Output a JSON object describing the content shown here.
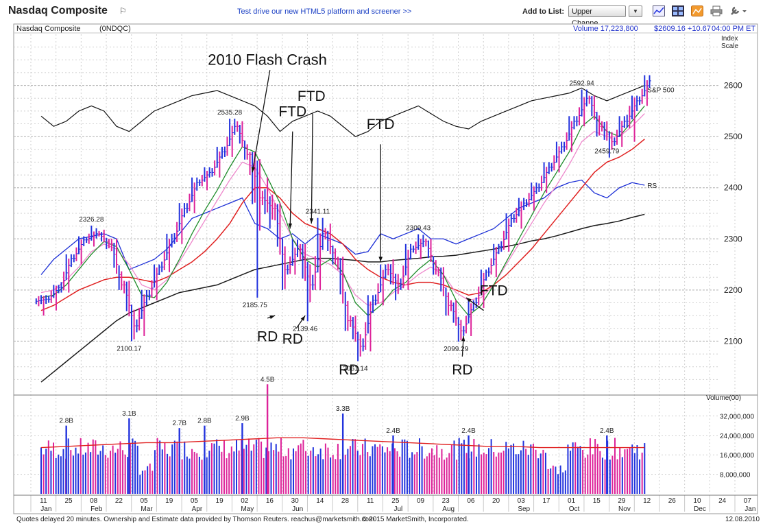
{
  "header": {
    "title": "Nasdaq Composite",
    "promo": "Test drive our new HTML5 platform and screener >>",
    "add_to_list": "Add to List:",
    "list_value": "Upper Channe..."
  },
  "info_bar": {
    "name": "Nasdaq Composite",
    "symbol": "(0NDQC)",
    "volume": "Volume 17,223,800",
    "price": "$2609.16 +10.67",
    "time": "04:00 PM ET"
  },
  "footer": {
    "left": "Quotes delayed 20 minutes.  Ownership and Estimate data provided by Thomson Reuters. reachus@marketsmith.com",
    "center": "© 2015 MarketSmith, Incorporated.",
    "date": "12.08.2010"
  },
  "colors": {
    "up": "#2233dd",
    "down": "#dd2299",
    "ma_short": "#1e8c2a",
    "ma_mid": "#ee88cc",
    "ma_50": "#e02020",
    "ma_200": "#1a1a1a",
    "rs_line": "#1c2fd6",
    "grid": "#cfcfcf"
  },
  "chart_data": [
    {
      "type": "line",
      "title": "Nasdaq Composite",
      "ylabel": "Index Scale",
      "y_ticks": [
        2100,
        2200,
        2300,
        2400,
        2500,
        2600
      ],
      "ylim": [
        2000,
        2700
      ],
      "grid": true,
      "x_labels": [
        {
          "label": "11",
          "month": "Jan"
        },
        {
          "label": "25",
          "month": ""
        },
        {
          "label": "08",
          "month": "Feb"
        },
        {
          "label": "22",
          "month": ""
        },
        {
          "label": "05",
          "month": "Mar"
        },
        {
          "label": "19",
          "month": ""
        },
        {
          "label": "05",
          "month": "Apr"
        },
        {
          "label": "19",
          "month": ""
        },
        {
          "label": "02",
          "month": "May"
        },
        {
          "label": "16",
          "month": ""
        },
        {
          "label": "30",
          "month": "Jun"
        },
        {
          "label": "14",
          "month": ""
        },
        {
          "label": "28",
          "month": ""
        },
        {
          "label": "11",
          "month": ""
        },
        {
          "label": "25",
          "month": "Jul"
        },
        {
          "label": "09",
          "month": ""
        },
        {
          "label": "23",
          "month": "Aug"
        },
        {
          "label": "06",
          "month": ""
        },
        {
          "label": "20",
          "month": ""
        },
        {
          "label": "03",
          "month": "Sep"
        },
        {
          "label": "17",
          "month": ""
        },
        {
          "label": "01",
          "month": "Oct"
        },
        {
          "label": "15",
          "month": ""
        },
        {
          "label": "29",
          "month": "Nov"
        },
        {
          "label": "12",
          "month": ""
        },
        {
          "label": "26",
          "month": ""
        },
        {
          "label": "10",
          "month": "Dec"
        },
        {
          "label": "24",
          "month": ""
        },
        {
          "label": "07",
          "month": "Jan"
        }
      ],
      "weeks_plotted": 49,
      "price_bars": [
        {
          "w": 0,
          "o": 2178,
          "h": 2190,
          "l": 2150,
          "c": 2182
        },
        {
          "w": 1,
          "o": 2182,
          "h": 2210,
          "l": 2160,
          "c": 2205
        },
        {
          "w": 2,
          "o": 2205,
          "h": 2270,
          "l": 2195,
          "c": 2262
        },
        {
          "w": 3,
          "o": 2262,
          "h": 2305,
          "l": 2250,
          "c": 2298
        },
        {
          "w": 4,
          "o": 2298,
          "h": 2326,
          "l": 2285,
          "c": 2310
        },
        {
          "w": 5,
          "o": 2310,
          "h": 2318,
          "l": 2280,
          "c": 2290
        },
        {
          "w": 6,
          "o": 2290,
          "h": 2300,
          "l": 2200,
          "c": 2210
        },
        {
          "w": 7,
          "o": 2210,
          "h": 2218,
          "l": 2100,
          "c": 2130
        },
        {
          "w": 8,
          "o": 2130,
          "h": 2200,
          "l": 2110,
          "c": 2190
        },
        {
          "w": 9,
          "o": 2190,
          "h": 2250,
          "l": 2180,
          "c": 2245
        },
        {
          "w": 10,
          "o": 2245,
          "h": 2310,
          "l": 2235,
          "c": 2300
        },
        {
          "w": 11,
          "o": 2300,
          "h": 2370,
          "l": 2290,
          "c": 2360
        },
        {
          "w": 12,
          "o": 2360,
          "h": 2420,
          "l": 2350,
          "c": 2410
        },
        {
          "w": 13,
          "o": 2410,
          "h": 2440,
          "l": 2395,
          "c": 2430
        },
        {
          "w": 14,
          "o": 2430,
          "h": 2480,
          "l": 2420,
          "c": 2470
        },
        {
          "w": 15,
          "o": 2470,
          "h": 2535,
          "l": 2460,
          "c": 2520
        },
        {
          "w": 16,
          "o": 2520,
          "h": 2530,
          "l": 2455,
          "c": 2465
        },
        {
          "w": 17,
          "o": 2465,
          "h": 2470,
          "l": 2185,
          "c": 2380
        },
        {
          "w": 18,
          "o": 2380,
          "h": 2420,
          "l": 2320,
          "c": 2360
        },
        {
          "w": 19,
          "o": 2360,
          "h": 2370,
          "l": 2200,
          "c": 2240
        },
        {
          "w": 20,
          "o": 2240,
          "h": 2300,
          "l": 2230,
          "c": 2280
        },
        {
          "w": 21,
          "o": 2280,
          "h": 2290,
          "l": 2139,
          "c": 2210
        },
        {
          "w": 22,
          "o": 2210,
          "h": 2341,
          "l": 2200,
          "c": 2310
        },
        {
          "w": 23,
          "o": 2310,
          "h": 2330,
          "l": 2250,
          "c": 2260
        },
        {
          "w": 24,
          "o": 2260,
          "h": 2265,
          "l": 2120,
          "c": 2140
        },
        {
          "w": 25,
          "o": 2140,
          "h": 2150,
          "l": 2061,
          "c": 2090
        },
        {
          "w": 26,
          "o": 2090,
          "h": 2190,
          "l": 2080,
          "c": 2180
        },
        {
          "w": 27,
          "o": 2180,
          "h": 2250,
          "l": 2170,
          "c": 2240
        },
        {
          "w": 28,
          "o": 2240,
          "h": 2260,
          "l": 2180,
          "c": 2210
        },
        {
          "w": 29,
          "o": 2210,
          "h": 2290,
          "l": 2200,
          "c": 2280
        },
        {
          "w": 30,
          "o": 2280,
          "h": 2309,
          "l": 2260,
          "c": 2295
        },
        {
          "w": 31,
          "o": 2295,
          "h": 2300,
          "l": 2230,
          "c": 2240
        },
        {
          "w": 32,
          "o": 2240,
          "h": 2245,
          "l": 2150,
          "c": 2170
        },
        {
          "w": 33,
          "o": 2170,
          "h": 2180,
          "l": 2099,
          "c": 2120
        },
        {
          "w": 34,
          "o": 2120,
          "h": 2180,
          "l": 2110,
          "c": 2175
        },
        {
          "w": 35,
          "o": 2175,
          "h": 2240,
          "l": 2165,
          "c": 2235
        },
        {
          "w": 36,
          "o": 2235,
          "h": 2290,
          "l": 2225,
          "c": 2285
        },
        {
          "w": 37,
          "o": 2285,
          "h": 2350,
          "l": 2275,
          "c": 2340
        },
        {
          "w": 38,
          "o": 2340,
          "h": 2380,
          "l": 2320,
          "c": 2370
        },
        {
          "w": 39,
          "o": 2370,
          "h": 2410,
          "l": 2355,
          "c": 2400
        },
        {
          "w": 40,
          "o": 2400,
          "h": 2450,
          "l": 2390,
          "c": 2440
        },
        {
          "w": 41,
          "o": 2440,
          "h": 2490,
          "l": 2430,
          "c": 2480
        },
        {
          "w": 42,
          "o": 2480,
          "h": 2540,
          "l": 2470,
          "c": 2530
        },
        {
          "w": 43,
          "o": 2530,
          "h": 2592,
          "l": 2520,
          "c": 2575
        },
        {
          "w": 44,
          "o": 2575,
          "h": 2580,
          "l": 2500,
          "c": 2520
        },
        {
          "w": 45,
          "o": 2520,
          "h": 2530,
          "l": 2459,
          "c": 2490
        },
        {
          "w": 46,
          "o": 2490,
          "h": 2540,
          "l": 2480,
          "c": 2530
        },
        {
          "w": 47,
          "o": 2530,
          "h": 2580,
          "l": 2490,
          "c": 2570
        },
        {
          "w": 48,
          "o": 2570,
          "h": 2620,
          "l": 2560,
          "c": 2609
        }
      ],
      "ma_short": [
        2185,
        2190,
        2210,
        2240,
        2270,
        2295,
        2285,
        2240,
        2190,
        2185,
        2215,
        2260,
        2310,
        2355,
        2395,
        2440,
        2480,
        2470,
        2420,
        2370,
        2300,
        2260,
        2245,
        2260,
        2235,
        2175,
        2150,
        2170,
        2200,
        2215,
        2240,
        2260,
        2230,
        2180,
        2150,
        2170,
        2210,
        2255,
        2300,
        2345,
        2390,
        2430,
        2470,
        2520,
        2540,
        2510,
        2500,
        2530,
        2560
      ],
      "ma_mid": [
        2195,
        2200,
        2220,
        2245,
        2275,
        2290,
        2280,
        2250,
        2210,
        2200,
        2220,
        2255,
        2295,
        2335,
        2375,
        2415,
        2450,
        2440,
        2400,
        2350,
        2300,
        2270,
        2260,
        2250,
        2230,
        2190,
        2170,
        2175,
        2195,
        2210,
        2230,
        2245,
        2230,
        2195,
        2180,
        2185,
        2210,
        2250,
        2290,
        2330,
        2370,
        2405,
        2445,
        2490,
        2510,
        2500,
        2500,
        2520,
        2545
      ],
      "ma_50": [
        2160,
        2170,
        2185,
        2200,
        2210,
        2220,
        2225,
        2225,
        2220,
        2215,
        2225,
        2240,
        2255,
        2275,
        2300,
        2330,
        2370,
        2400,
        2400,
        2380,
        2350,
        2330,
        2320,
        2310,
        2290,
        2260,
        2240,
        2225,
        2215,
        2210,
        2215,
        2215,
        2210,
        2200,
        2190,
        2195,
        2210,
        2230,
        2255,
        2280,
        2310,
        2340,
        2370,
        2400,
        2430,
        2450,
        2460,
        2475,
        2495
      ],
      "ma_200": [
        2020,
        2040,
        2060,
        2080,
        2100,
        2120,
        2140,
        2155,
        2165,
        2175,
        2185,
        2195,
        2200,
        2205,
        2210,
        2220,
        2230,
        2240,
        2245,
        2250,
        2255,
        2260,
        2262,
        2262,
        2260,
        2258,
        2255,
        2255,
        2258,
        2260,
        2262,
        2265,
        2266,
        2268,
        2272,
        2276,
        2280,
        2285,
        2290,
        2296,
        2300,
        2306,
        2313,
        2320,
        2326,
        2330,
        2335,
        2342,
        2348
      ],
      "rs_line": [
        2230,
        2260,
        2280,
        2300,
        2305,
        2310,
        2300,
        2240,
        2250,
        2260,
        2280,
        2310,
        2340,
        2350,
        2360,
        2370,
        2380,
        2330,
        2320,
        2300,
        2310,
        2290,
        2310,
        2300,
        2290,
        2270,
        2275,
        2310,
        2300,
        2310,
        2320,
        2300,
        2300,
        2290,
        2300,
        2310,
        2320,
        2340,
        2360,
        2370,
        2380,
        2400,
        2410,
        2415,
        2390,
        2380,
        2400,
        2410,
        2405
      ],
      "sp500_line": [
        2540,
        2520,
        2530,
        2550,
        2560,
        2550,
        2520,
        2510,
        2530,
        2550,
        2560,
        2570,
        2580,
        2585,
        2590,
        2580,
        2570,
        2560,
        2540,
        2510,
        2530,
        2540,
        2550,
        2540,
        2520,
        2500,
        2510,
        2530,
        2540,
        2550,
        2560,
        2545,
        2530,
        2520,
        2515,
        2530,
        2540,
        2550,
        2560,
        2570,
        2575,
        2580,
        2585,
        2595,
        2580,
        2570,
        2580,
        2590,
        2600
      ],
      "price_labels": [
        {
          "w": 4,
          "v": 2326,
          "text": "2326.28"
        },
        {
          "w": 7,
          "v": 2100,
          "text": "2100.17"
        },
        {
          "w": 15,
          "v": 2535,
          "text": "2535.28"
        },
        {
          "w": 17,
          "v": 2185,
          "text": "2185.75"
        },
        {
          "w": 21,
          "v": 2139,
          "text": "2139.46"
        },
        {
          "w": 22,
          "v": 2341,
          "text": "2341.11"
        },
        {
          "w": 25,
          "v": 2061,
          "text": "2061.14"
        },
        {
          "w": 30,
          "v": 2309,
          "text": "2309.43"
        },
        {
          "w": 33,
          "v": 2099,
          "text": "2099.29"
        },
        {
          "w": 43,
          "v": 2592,
          "text": "2592.94"
        },
        {
          "w": 45,
          "v": 2459,
          "text": "2459.79"
        }
      ],
      "line_labels": {
        "sp500": "S&P 500",
        "rs": "RS"
      },
      "annotations": [
        {
          "text": "2010 Flash Crash",
          "w": 18,
          "v": 2640
        },
        {
          "text": "FTD",
          "w": 20,
          "v": 2540
        },
        {
          "text": "FTD",
          "w": 21.5,
          "v": 2570
        },
        {
          "text": "FTD",
          "w": 27,
          "v": 2515
        },
        {
          "text": "FTD",
          "w": 36,
          "v": 2190
        },
        {
          "text": "RD",
          "w": 18,
          "v": 2100
        },
        {
          "text": "RD",
          "w": 20,
          "v": 2095
        },
        {
          "text": "RD",
          "w": 24.5,
          "v": 2035
        },
        {
          "text": "RD",
          "w": 33.5,
          "v": 2035
        }
      ]
    },
    {
      "type": "bar",
      "title": "Volume(00)",
      "y_ticks": [
        "8,000,000",
        "16,000,000",
        "24,000,000",
        "32,000,000"
      ],
      "ylim": [
        0,
        40000000
      ],
      "volume_labels": [
        {
          "w": 2,
          "v": 28000000,
          "text": "2.8B"
        },
        {
          "w": 7,
          "v": 31000000,
          "text": "3.1B"
        },
        {
          "w": 11,
          "v": 27000000,
          "text": "2.7B"
        },
        {
          "w": 13,
          "v": 28000000,
          "text": "2.8B"
        },
        {
          "w": 16,
          "v": 29000000,
          "text": "2.9B"
        },
        {
          "w": 18,
          "v": 45000000,
          "text": "4.5B"
        },
        {
          "w": 24,
          "v": 33000000,
          "text": "3.3B"
        },
        {
          "w": 28,
          "v": 24000000,
          "text": "2.4B"
        },
        {
          "w": 34,
          "v": 24000000,
          "text": "2.4B"
        },
        {
          "w": 45,
          "v": 24000000,
          "text": "2.4B"
        }
      ],
      "volume_ma": [
        19000000,
        19500000,
        20000000,
        20500000,
        21000000,
        21000000,
        21500000,
        22000000,
        22500000,
        23000000,
        23000000,
        22500000,
        22000000,
        21500000,
        21000000,
        20500000,
        20000000,
        19500000,
        19500000,
        19000000,
        19000000,
        19000000,
        19000000,
        19000000
      ]
    }
  ]
}
